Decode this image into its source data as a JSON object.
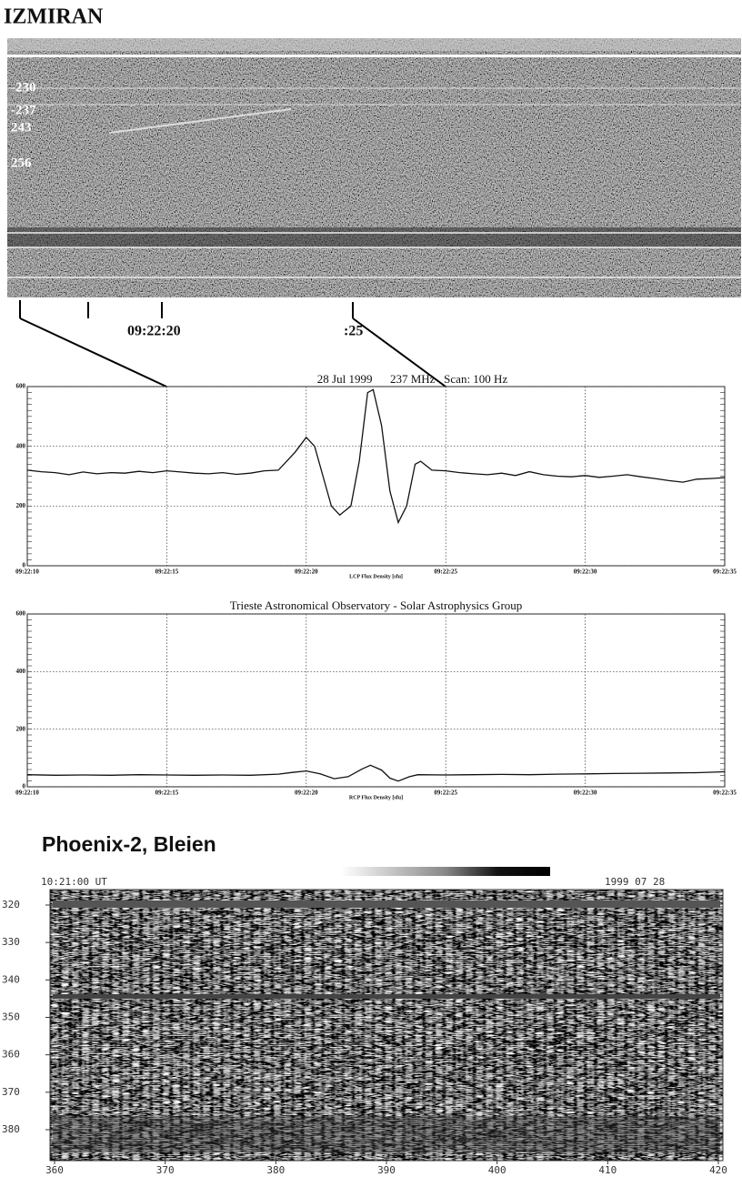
{
  "izmiran": {
    "title": "IZMIRAN",
    "freq_labels": [
      "-230",
      "-237",
      "243",
      "256"
    ],
    "time_labels": [
      "09:22:20",
      ":25"
    ]
  },
  "chart_data": [
    {
      "type": "line",
      "title": "28 Jul 1999      237 MHz   Scan: 100 Hz",
      "x_label": "LCP Flux Density [sfu]",
      "color": "#111111",
      "grid": true,
      "xlim": [
        0,
        25
      ],
      "ylim": [
        0,
        600
      ],
      "yticks": [
        0,
        200,
        400,
        600
      ],
      "xticks": [
        {
          "value": 0,
          "label": "09:22:10"
        },
        {
          "value": 5,
          "label": "09:22:15"
        },
        {
          "value": 10,
          "label": "09:22:20"
        },
        {
          "value": 15,
          "label": "09:22:25"
        },
        {
          "value": 20,
          "label": "09:22:30"
        },
        {
          "value": 25,
          "label": "09:22:35"
        }
      ],
      "x": [
        0,
        0.5,
        1,
        1.5,
        2,
        2.5,
        3,
        3.5,
        4,
        4.5,
        5,
        5.5,
        6,
        6.5,
        7,
        7.5,
        8,
        8.5,
        9,
        9.3,
        9.6,
        10,
        10.3,
        10.6,
        10.9,
        11.2,
        11.6,
        11.9,
        12.2,
        12.4,
        12.7,
        13,
        13.3,
        13.6,
        13.9,
        14.1,
        14.5,
        15,
        15.5,
        16,
        16.5,
        17,
        17.5,
        18,
        18.5,
        19,
        19.5,
        20,
        20.5,
        21,
        21.5,
        22,
        22.5,
        23,
        23.5,
        24,
        24.5,
        25
      ],
      "values": [
        320,
        315,
        312,
        305,
        314,
        308,
        312,
        310,
        316,
        312,
        318,
        314,
        310,
        308,
        312,
        306,
        310,
        318,
        320,
        350,
        380,
        430,
        400,
        300,
        200,
        170,
        200,
        350,
        580,
        590,
        470,
        250,
        145,
        200,
        340,
        350,
        320,
        318,
        312,
        308,
        305,
        310,
        302,
        315,
        305,
        300,
        298,
        302,
        296,
        300,
        305,
        298,
        292,
        285,
        280,
        290,
        292,
        295
      ]
    },
    {
      "type": "line",
      "title": "Trieste Astronomical Observatory - Solar Astrophysics Group",
      "x_label": "RCP Flux Density [sfu]",
      "color": "#111111",
      "grid": true,
      "xlim": [
        0,
        25
      ],
      "ylim": [
        0,
        600
      ],
      "yticks": [
        0,
        200,
        400,
        600
      ],
      "xticks": [
        {
          "value": 0,
          "label": "09:22:10"
        },
        {
          "value": 5,
          "label": "09:22:15"
        },
        {
          "value": 10,
          "label": "09:22:20"
        },
        {
          "value": 15,
          "label": "09:22:25"
        },
        {
          "value": 20,
          "label": "09:22:30"
        },
        {
          "value": 25,
          "label": "09:22:35"
        }
      ],
      "x": [
        0,
        1,
        2,
        3,
        4,
        5,
        6,
        7,
        8,
        9,
        9.5,
        10,
        10.5,
        11,
        11.5,
        12,
        12.3,
        12.7,
        13,
        13.3,
        13.7,
        14,
        15,
        16,
        17,
        18,
        19,
        20,
        21,
        22,
        23,
        24,
        25
      ],
      "values": [
        42,
        40,
        41,
        40,
        42,
        41,
        40,
        41,
        40,
        44,
        50,
        55,
        45,
        28,
        35,
        62,
        75,
        58,
        30,
        20,
        35,
        42,
        41,
        42,
        43,
        42,
        44,
        45,
        46,
        47,
        48,
        49,
        52
      ]
    }
  ],
  "phoenix": {
    "title": "Phoenix-2, Bleien",
    "time_label": "10:21:00 UT",
    "date_label": "1999 07 28",
    "y_labels": [
      "320",
      "330",
      "340",
      "350",
      "360",
      "370",
      "380"
    ],
    "x_labels": [
      "360",
      "370",
      "380",
      "390",
      "400",
      "410",
      "420"
    ]
  }
}
